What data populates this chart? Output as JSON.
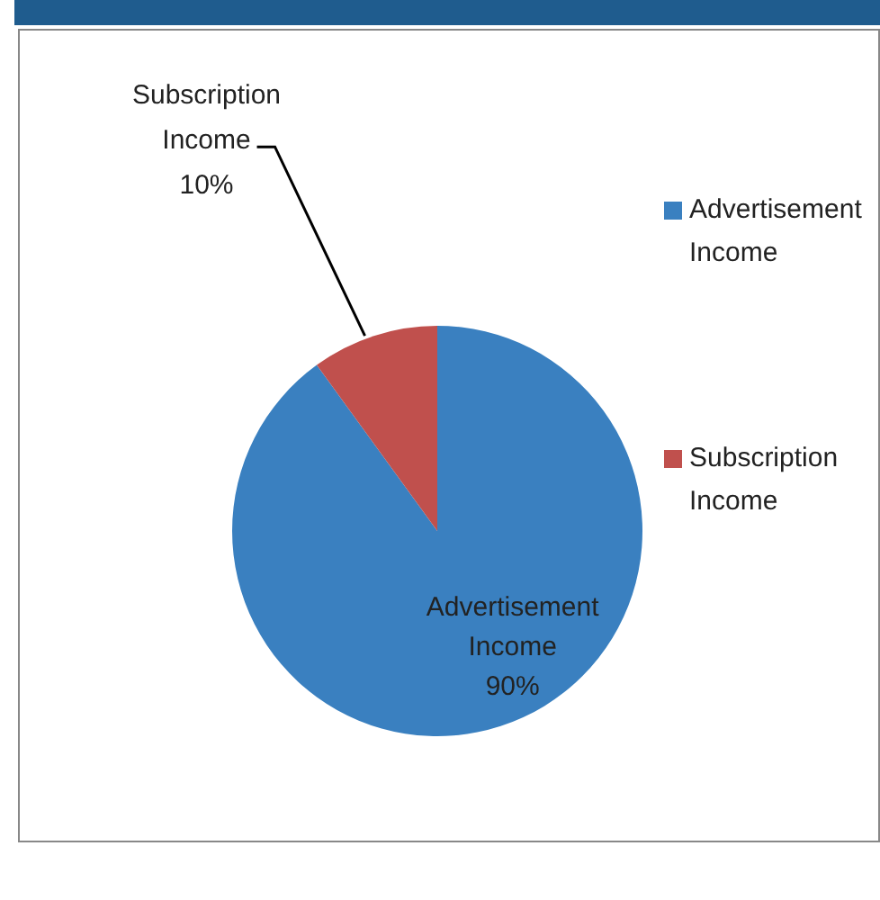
{
  "chart_data": {
    "type": "pie",
    "categories": [
      "Advertisement Income",
      "Subscription Income"
    ],
    "values": [
      90,
      10
    ],
    "colors": [
      "#3a80c0",
      "#c0504d"
    ],
    "value_labels": [
      "90%",
      "10%"
    ],
    "legend": "right"
  }
}
